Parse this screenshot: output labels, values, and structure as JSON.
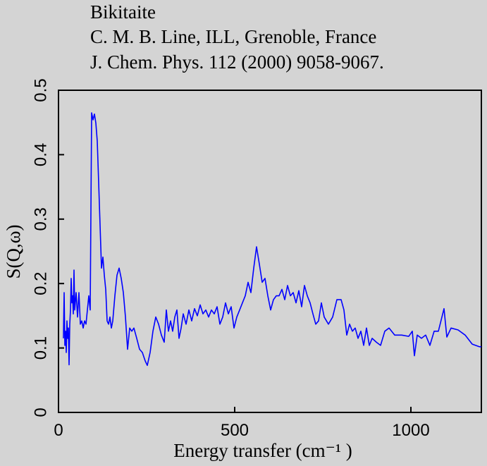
{
  "chart_data": {
    "type": "line",
    "title": [
      "Bikitaite",
      "C. M. B. Line, ILL, Grenoble, France",
      "J. Chem. Phys. 112 (2000) 9058-9067."
    ],
    "xlabel": "Energy transfer (cm⁻¹ )",
    "ylabel": "S(Q,ω)",
    "xlim": [
      0,
      1200
    ],
    "ylim": [
      0,
      0.5
    ],
    "xticks": [
      0,
      500,
      1000
    ],
    "yticks": [
      0,
      0.1,
      0.2,
      0.3,
      0.4,
      0.5
    ],
    "series": [
      {
        "color": "#0000ff",
        "x": [
          14,
          16,
          18,
          20,
          22,
          24,
          26,
          28,
          30,
          32,
          34,
          36,
          38,
          40,
          42,
          44,
          46,
          50,
          54,
          58,
          62,
          66,
          70,
          74,
          78,
          82,
          86,
          90,
          94,
          98,
          102,
          106,
          110,
          114,
          118,
          122,
          126,
          130,
          134,
          138,
          142,
          146,
          150,
          154,
          160,
          166,
          172,
          178,
          184,
          190,
          196,
          202,
          208,
          214,
          222,
          230,
          238,
          246,
          252,
          260,
          268,
          276,
          284,
          292,
          300,
          306,
          312,
          318,
          324,
          330,
          336,
          342,
          348,
          354,
          362,
          370,
          378,
          386,
          394,
          402,
          410,
          418,
          426,
          434,
          442,
          450,
          458,
          466,
          474,
          482,
          490,
          498,
          506,
          514,
          522,
          530,
          538,
          546,
          554,
          562,
          570,
          578,
          586,
          594,
          602,
          610,
          618,
          626,
          634,
          642,
          650,
          658,
          666,
          674,
          682,
          690,
          698,
          706,
          714,
          722,
          730,
          738,
          746,
          754,
          766,
          778,
          790,
          802,
          810,
          818,
          826,
          834,
          842,
          850,
          858,
          866,
          874,
          882,
          890,
          902,
          914,
          926,
          938,
          954,
          974,
          994,
          1004,
          1010,
          1018,
          1030,
          1042,
          1054,
          1066,
          1078,
          1094,
          1102,
          1114,
          1134,
          1154,
          1174,
          1194,
          1200
        ],
        "values": [
          0.115,
          0.186,
          0.104,
          0.126,
          0.093,
          0.142,
          0.115,
          0.131,
          0.074,
          0.137,
          0.159,
          0.208,
          0.17,
          0.181,
          0.153,
          0.221,
          0.159,
          0.186,
          0.148,
          0.186,
          0.137,
          0.142,
          0.131,
          0.142,
          0.137,
          0.159,
          0.181,
          0.159,
          0.465,
          0.454,
          0.463,
          0.449,
          0.421,
          0.356,
          0.29,
          0.224,
          0.241,
          0.213,
          0.191,
          0.142,
          0.137,
          0.148,
          0.131,
          0.142,
          0.181,
          0.213,
          0.224,
          0.208,
          0.186,
          0.148,
          0.098,
          0.131,
          0.126,
          0.131,
          0.115,
          0.098,
          0.093,
          0.08,
          0.073,
          0.093,
          0.126,
          0.148,
          0.137,
          0.12,
          0.109,
          0.159,
          0.126,
          0.142,
          0.126,
          0.148,
          0.159,
          0.115,
          0.131,
          0.153,
          0.137,
          0.159,
          0.142,
          0.161,
          0.15,
          0.167,
          0.153,
          0.159,
          0.148,
          0.159,
          0.153,
          0.164,
          0.137,
          0.148,
          0.17,
          0.153,
          0.164,
          0.131,
          0.148,
          0.159,
          0.17,
          0.181,
          0.202,
          0.186,
          0.224,
          0.257,
          0.23,
          0.202,
          0.208,
          0.181,
          0.159,
          0.175,
          0.181,
          0.181,
          0.191,
          0.175,
          0.197,
          0.181,
          0.186,
          0.17,
          0.189,
          0.164,
          0.197,
          0.181,
          0.17,
          0.153,
          0.137,
          0.142,
          0.17,
          0.148,
          0.137,
          0.148,
          0.175,
          0.175,
          0.159,
          0.12,
          0.137,
          0.126,
          0.131,
          0.115,
          0.126,
          0.104,
          0.131,
          0.104,
          0.115,
          0.109,
          0.104,
          0.126,
          0.131,
          0.12,
          0.12,
          0.118,
          0.126,
          0.088,
          0.12,
          0.115,
          0.12,
          0.104,
          0.126,
          0.126,
          0.161,
          0.117,
          0.131,
          0.128,
          0.12,
          0.106,
          0.102,
          0.102
        ]
      }
    ]
  }
}
